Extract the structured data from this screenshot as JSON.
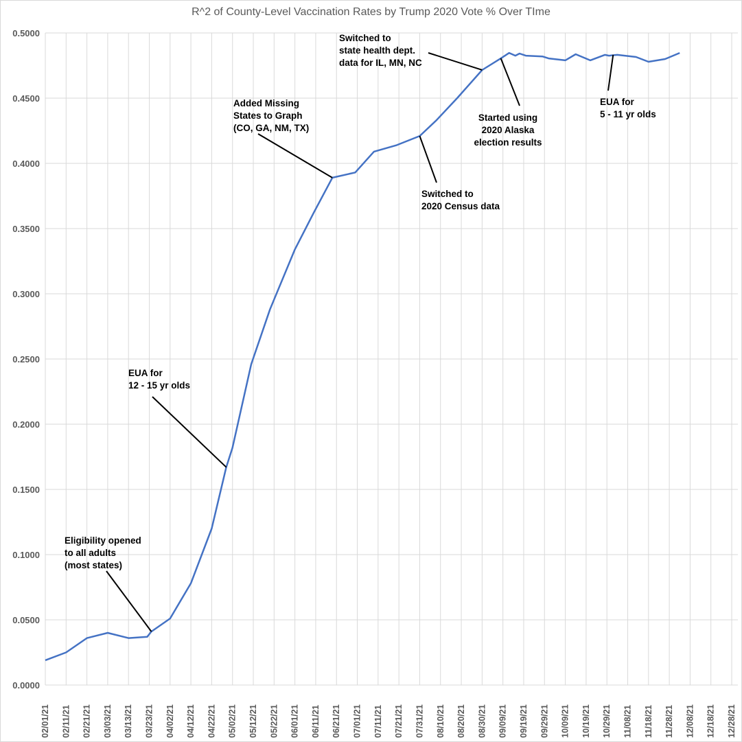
{
  "chart_data": {
    "type": "line",
    "title": "R^2 of County-Level Vaccination Rates by Trump 2020 Vote % Over TIme",
    "xlabel": "",
    "ylabel": "",
    "ylim": [
      0,
      0.5
    ],
    "xlim": [
      "02/01/21",
      "12/28/21"
    ],
    "grid": true,
    "line_color": "#4472C4",
    "y_ticks": [
      "0.0000",
      "0.0500",
      "0.1000",
      "0.1500",
      "0.2000",
      "0.2500",
      "0.3000",
      "0.3500",
      "0.4000",
      "0.4500",
      "0.5000"
    ],
    "x_ticks": [
      "02/01/21",
      "02/11/21",
      "02/21/21",
      "03/03/21",
      "03/13/21",
      "03/23/21",
      "04/02/21",
      "04/12/21",
      "04/22/21",
      "05/02/21",
      "05/12/21",
      "05/22/21",
      "06/01/21",
      "06/11/21",
      "06/21/21",
      "07/01/21",
      "07/11/21",
      "07/21/21",
      "07/31/21",
      "08/10/21",
      "08/20/21",
      "08/30/21",
      "09/09/21",
      "09/19/21",
      "09/29/21",
      "10/09/21",
      "10/19/21",
      "10/29/21",
      "11/08/21",
      "11/18/21",
      "11/28/21",
      "12/08/21",
      "12/18/21",
      "12/28/21"
    ],
    "series": [
      {
        "x": [
          "02/01/21",
          "02/11/21",
          "02/21/21",
          "03/03/21",
          "03/13/21",
          "03/22/21",
          "03/24/21",
          "04/02/21",
          "04/12/21",
          "04/22/21",
          "04/29/21",
          "05/02/21",
          "05/11/21",
          "05/20/21",
          "06/01/21",
          "06/10/21",
          "06/19/21",
          "06/30/21",
          "07/09/21",
          "07/20/21",
          "07/31/21",
          "08/08/21",
          "08/18/21",
          "08/30/21",
          "09/08/21",
          "09/12/21",
          "09/15/21",
          "09/17/21",
          "09/20/21",
          "09/28/21",
          "10/01/21",
          "10/09/21",
          "10/14/21",
          "10/21/21",
          "10/28/21",
          "10/30/21",
          "11/03/21",
          "11/12/21",
          "11/18/21",
          "11/26/21",
          "12/03/21"
        ],
        "y": [
          0.019,
          0.025,
          0.036,
          0.04,
          0.036,
          0.037,
          0.041,
          0.051,
          0.078,
          0.12,
          0.167,
          0.182,
          0.246,
          0.288,
          0.334,
          0.362,
          0.389,
          0.393,
          0.409,
          0.414,
          0.421,
          0.433,
          0.45,
          0.4716,
          0.4805,
          0.4847,
          0.4826,
          0.4842,
          0.4826,
          0.482,
          0.4805,
          0.479,
          0.4837,
          0.479,
          0.4832,
          0.4826,
          0.4832,
          0.4816,
          0.4779,
          0.48,
          0.4847
        ]
      }
    ],
    "annotations": [
      {
        "lines": [
          "Eligibility opened",
          "to all adults",
          "(most states)"
        ],
        "x": "03/24/21",
        "y": 0.041
      },
      {
        "lines": [
          "EUA for",
          "12 - 15 yr olds"
        ],
        "x": "04/29/21",
        "y": 0.167
      },
      {
        "lines": [
          "Added Missing",
          "States to Graph",
          "(CO, GA, NM, TX)"
        ],
        "x": "06/19/21",
        "y": 0.389
      },
      {
        "lines": [
          "Switched to",
          "2020 Census data"
        ],
        "x": "07/31/21",
        "y": 0.421
      },
      {
        "lines": [
          "Switched to",
          "state health dept.",
          "data for IL, MN, NC"
        ],
        "x": "08/30/21",
        "y": 0.4716
      },
      {
        "lines": [
          "Started using",
          "2020 Alaska",
          "election results"
        ],
        "x": "09/08/21",
        "y": 0.4805
      },
      {
        "lines": [
          "EUA for",
          "5 - 11 yr olds"
        ],
        "x": "11/01/21",
        "y": 0.4832
      }
    ]
  }
}
